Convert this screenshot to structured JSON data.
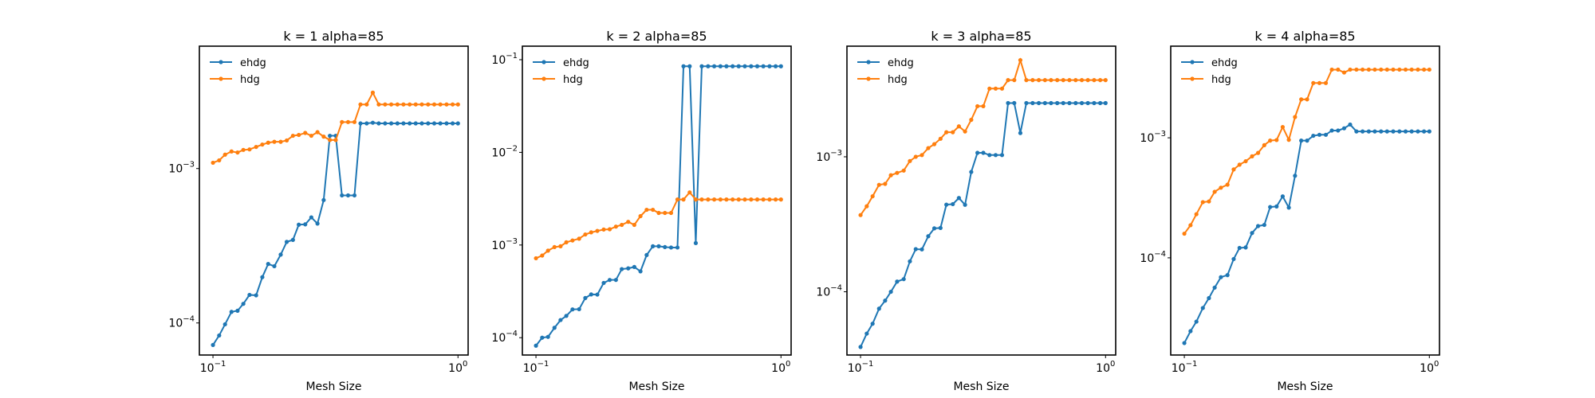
{
  "figure": {
    "colors": {
      "ehdg": "#1f77b4",
      "hdg": "#ff7f0e",
      "frame": "#000000",
      "background": "#ffffff"
    }
  },
  "chart_data": [
    {
      "type": "line",
      "title": "k = 1 alpha=85",
      "xlabel": "Mesh Size",
      "ylabel": "",
      "xscale": "log",
      "yscale": "log",
      "xlim": [
        0.088,
        1.1
      ],
      "ylim": [
        6.2e-05,
        0.0062
      ],
      "xticks": [
        {
          "value": 0.1,
          "base": "10",
          "exp": "−1"
        },
        {
          "value": 1,
          "base": "10",
          "exp": "0"
        }
      ],
      "yticks": [
        {
          "value": 0.0001,
          "base": "10",
          "exp": "−4"
        },
        {
          "value": 0.001,
          "base": "10",
          "exp": "−3"
        }
      ],
      "grid": false,
      "legend": "upper-left",
      "x": [
        0.1,
        0.106,
        0.112,
        0.119,
        0.126,
        0.133,
        0.141,
        0.15,
        0.159,
        0.168,
        0.178,
        0.189,
        0.2,
        0.212,
        0.224,
        0.238,
        0.252,
        0.267,
        0.283,
        0.3,
        0.317,
        0.336,
        0.356,
        0.378,
        0.4,
        0.424,
        0.449,
        0.475,
        0.504,
        0.534,
        0.566,
        0.599,
        0.635,
        0.672,
        0.712,
        0.755,
        0.8,
        0.847,
        0.898,
        0.951,
        1.0
      ],
      "series": [
        {
          "name": "ehdg",
          "values": [
            7.2e-05,
            8.3e-05,
            9.8e-05,
            0.000118,
            0.00012,
            0.000133,
            0.000152,
            0.000151,
            0.000198,
            0.000241,
            0.000233,
            0.000277,
            0.000335,
            0.000345,
            0.000433,
            0.000435,
            0.000483,
            0.00044,
            0.000625,
            0.00163,
            0.00163,
            0.00067,
            0.00067,
            0.00067,
            0.00196,
            0.00196,
            0.00198,
            0.00196,
            0.00196,
            0.00196,
            0.00196,
            0.00196,
            0.00196,
            0.00196,
            0.00196,
            0.00196,
            0.00196,
            0.00196,
            0.00196,
            0.00196,
            0.00196
          ]
        },
        {
          "name": "hdg",
          "values": [
            0.00109,
            0.00113,
            0.00123,
            0.00129,
            0.00127,
            0.00132,
            0.00133,
            0.00138,
            0.00143,
            0.00147,
            0.00149,
            0.00149,
            0.00152,
            0.00163,
            0.00165,
            0.0017,
            0.00163,
            0.00172,
            0.00161,
            0.00153,
            0.00153,
            0.002,
            0.002,
            0.002,
            0.0026,
            0.0026,
            0.0031,
            0.0026,
            0.0026,
            0.0026,
            0.0026,
            0.0026,
            0.0026,
            0.0026,
            0.0026,
            0.0026,
            0.0026,
            0.0026,
            0.0026,
            0.0026,
            0.0026
          ]
        }
      ]
    },
    {
      "type": "line",
      "title": "k = 2 alpha=85",
      "xlabel": "Mesh Size",
      "ylabel": "",
      "xscale": "log",
      "yscale": "log",
      "xlim": [
        0.088,
        1.1
      ],
      "ylim": [
        6.5e-05,
        0.14
      ],
      "xticks": [
        {
          "value": 0.1,
          "base": "10",
          "exp": "−1"
        },
        {
          "value": 1,
          "base": "10",
          "exp": "0"
        }
      ],
      "yticks": [
        {
          "value": 0.0001,
          "base": "10",
          "exp": "−4"
        },
        {
          "value": 0.001,
          "base": "10",
          "exp": "−3"
        },
        {
          "value": 0.01,
          "base": "10",
          "exp": "−2"
        },
        {
          "value": 0.1,
          "base": "10",
          "exp": "−1"
        }
      ],
      "grid": false,
      "legend": "upper-left",
      "x": [
        0.1,
        0.106,
        0.112,
        0.119,
        0.126,
        0.133,
        0.141,
        0.15,
        0.159,
        0.168,
        0.178,
        0.189,
        0.2,
        0.212,
        0.224,
        0.238,
        0.252,
        0.267,
        0.283,
        0.3,
        0.317,
        0.336,
        0.356,
        0.378,
        0.4,
        0.424,
        0.449,
        0.475,
        0.504,
        0.534,
        0.566,
        0.599,
        0.635,
        0.672,
        0.712,
        0.755,
        0.8,
        0.847,
        0.898,
        0.951,
        1.0
      ],
      "series": [
        {
          "name": "ehdg",
          "values": [
            8.2e-05,
            0.0001,
            0.000102,
            0.000128,
            0.000155,
            0.000172,
            0.000202,
            0.000203,
            0.000268,
            0.000293,
            0.000292,
            0.00039,
            0.00042,
            0.00042,
            0.00055,
            0.00056,
            0.00058,
            0.00052,
            0.00078,
            0.00097,
            0.00097,
            0.00095,
            0.00094,
            0.00094,
            0.085,
            0.085,
            0.00105,
            0.085,
            0.085,
            0.085,
            0.085,
            0.085,
            0.085,
            0.085,
            0.085,
            0.085,
            0.085,
            0.085,
            0.085,
            0.085,
            0.085
          ]
        },
        {
          "name": "hdg",
          "values": [
            0.00072,
            0.00077,
            0.00087,
            0.00095,
            0.00097,
            0.00107,
            0.00112,
            0.00117,
            0.0013,
            0.00137,
            0.00142,
            0.00147,
            0.00148,
            0.00158,
            0.00165,
            0.00178,
            0.00165,
            0.00205,
            0.0024,
            0.0024,
            0.00222,
            0.00222,
            0.00222,
            0.0031,
            0.0031,
            0.0037,
            0.0031,
            0.0031,
            0.0031,
            0.0031,
            0.0031,
            0.0031,
            0.0031,
            0.0031,
            0.0031,
            0.0031,
            0.0031,
            0.0031,
            0.0031,
            0.0031,
            0.0031
          ]
        }
      ]
    },
    {
      "type": "line",
      "title": "k = 3 alpha=85",
      "xlabel": "Mesh Size",
      "ylabel": "",
      "xscale": "log",
      "yscale": "log",
      "xlim": [
        0.088,
        1.1
      ],
      "ylim": [
        3.4e-05,
        0.0066
      ],
      "xticks": [
        {
          "value": 0.1,
          "base": "10",
          "exp": "−1"
        },
        {
          "value": 1,
          "base": "10",
          "exp": "0"
        }
      ],
      "yticks": [
        {
          "value": 0.0001,
          "base": "10",
          "exp": "−4"
        },
        {
          "value": 0.001,
          "base": "10",
          "exp": "−3"
        }
      ],
      "grid": false,
      "legend": "upper-left",
      "x": [
        0.1,
        0.106,
        0.112,
        0.119,
        0.126,
        0.133,
        0.141,
        0.15,
        0.159,
        0.168,
        0.178,
        0.189,
        0.2,
        0.212,
        0.224,
        0.238,
        0.252,
        0.267,
        0.283,
        0.3,
        0.317,
        0.336,
        0.356,
        0.378,
        0.4,
        0.424,
        0.449,
        0.475,
        0.504,
        0.534,
        0.566,
        0.599,
        0.635,
        0.672,
        0.712,
        0.755,
        0.8,
        0.847,
        0.898,
        0.951,
        1.0
      ],
      "series": [
        {
          "name": "ehdg",
          "values": [
            3.9e-05,
            4.9e-05,
            5.8e-05,
            7.5e-05,
            8.6e-05,
            0.0001,
            0.000119,
            0.000124,
            0.000168,
            0.000207,
            0.000206,
            0.000258,
            0.000295,
            0.000297,
            0.000442,
            0.000446,
            0.000495,
            0.000441,
            0.000772,
            0.00107,
            0.00107,
            0.00103,
            0.00103,
            0.00103,
            0.0025,
            0.0025,
            0.0015,
            0.0025,
            0.0025,
            0.0025,
            0.0025,
            0.0025,
            0.0025,
            0.0025,
            0.0025,
            0.0025,
            0.0025,
            0.0025,
            0.0025,
            0.0025,
            0.0025
          ]
        },
        {
          "name": "hdg",
          "values": [
            0.00037,
            0.00043,
            0.00051,
            0.00062,
            0.00063,
            0.00073,
            0.00076,
            0.00079,
            0.00093,
            0.001,
            0.00103,
            0.00116,
            0.00124,
            0.00136,
            0.00152,
            0.00152,
            0.00168,
            0.00154,
            0.00188,
            0.00237,
            0.00237,
            0.0032,
            0.0032,
            0.0032,
            0.0037,
            0.0037,
            0.0052,
            0.0037,
            0.0037,
            0.0037,
            0.0037,
            0.0037,
            0.0037,
            0.0037,
            0.0037,
            0.0037,
            0.0037,
            0.0037,
            0.0037,
            0.0037,
            0.0037
          ]
        }
      ]
    },
    {
      "type": "line",
      "title": "k = 4 alpha=85",
      "xlabel": "Mesh Size",
      "ylabel": "",
      "xscale": "log",
      "yscale": "log",
      "xlim": [
        0.088,
        1.1
      ],
      "ylim": [
        1.55e-05,
        0.0058
      ],
      "xticks": [
        {
          "value": 0.1,
          "base": "10",
          "exp": "−1"
        },
        {
          "value": 1,
          "base": "10",
          "exp": "0"
        }
      ],
      "yticks": [
        {
          "value": 0.0001,
          "base": "10",
          "exp": "−4"
        },
        {
          "value": 0.001,
          "base": "10",
          "exp": "−3"
        }
      ],
      "grid": false,
      "legend": "upper-left",
      "x": [
        0.1,
        0.106,
        0.112,
        0.119,
        0.126,
        0.133,
        0.141,
        0.15,
        0.159,
        0.168,
        0.178,
        0.189,
        0.2,
        0.212,
        0.224,
        0.238,
        0.252,
        0.267,
        0.283,
        0.3,
        0.317,
        0.336,
        0.356,
        0.378,
        0.4,
        0.424,
        0.449,
        0.475,
        0.504,
        0.534,
        0.566,
        0.599,
        0.635,
        0.672,
        0.712,
        0.755,
        0.8,
        0.847,
        0.898,
        0.951,
        1.0
      ],
      "series": [
        {
          "name": "ehdg",
          "values": [
            1.95e-05,
            2.45e-05,
            2.94e-05,
            3.82e-05,
            4.62e-05,
            5.65e-05,
            6.9e-05,
            7.18e-05,
            9.77e-05,
            0.000121,
            0.000122,
            0.000161,
            0.000184,
            0.000188,
            0.000265,
            0.000268,
            0.000325,
            0.000262,
            0.000483,
            0.000948,
            0.000948,
            0.00104,
            0.00106,
            0.00106,
            0.00115,
            0.00115,
            0.0012,
            0.00129,
            0.00113,
            0.00113,
            0.00113,
            0.00113,
            0.00113,
            0.00113,
            0.00113,
            0.00113,
            0.00113,
            0.00113,
            0.00113,
            0.00113,
            0.00113
          ]
        },
        {
          "name": "hdg",
          "values": [
            0.000159,
            0.000187,
            0.000231,
            0.000291,
            0.000295,
            0.000355,
            0.000384,
            0.000407,
            0.000545,
            0.000597,
            0.000638,
            0.000701,
            0.000748,
            0.000868,
            0.000948,
            0.000958,
            0.00123,
            0.000962,
            0.00149,
            0.00209,
            0.00209,
            0.00286,
            0.00286,
            0.00286,
            0.0037,
            0.0037,
            0.0035,
            0.0037,
            0.0037,
            0.0037,
            0.0037,
            0.0037,
            0.0037,
            0.0037,
            0.0037,
            0.0037,
            0.0037,
            0.0037,
            0.0037,
            0.0037,
            0.0037
          ]
        }
      ]
    }
  ]
}
